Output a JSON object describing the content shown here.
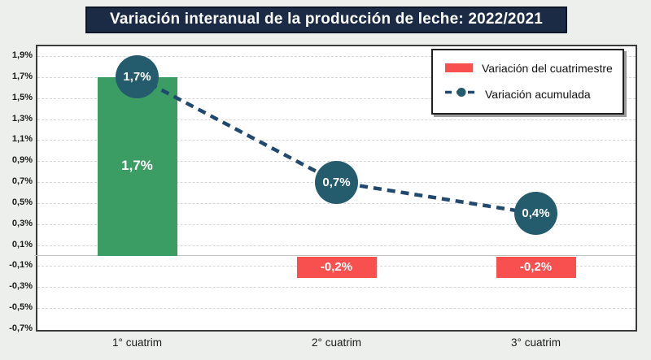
{
  "title": "Variación interanual de la producción de leche: 2022/2021",
  "legend": {
    "items": [
      {
        "label": "Variación del cuatrimestre",
        "marker": "bar-swatch"
      },
      {
        "label": "Variación acumulada",
        "marker": "dashed-line-dot"
      }
    ]
  },
  "chart_data": {
    "type": "bar",
    "title": "Variación interanual de la producción de leche: 2022/2021",
    "categories": [
      "1° cuatrim",
      "2° cuatrim",
      "3° cuatrim"
    ],
    "series": [
      {
        "name": "Variación del cuatrimestre",
        "type": "bar",
        "values": [
          1.7,
          -0.2,
          -0.2
        ],
        "labels": [
          "1,7%",
          "-0,2%",
          "-0,2%"
        ]
      },
      {
        "name": "Variación acumulada",
        "type": "line",
        "line_style": "dashed",
        "values": [
          1.7,
          0.7,
          0.4
        ],
        "labels": [
          "1,7%",
          "0,7%",
          "0,4%"
        ]
      }
    ],
    "ylim": [
      -0.7,
      1.9
    ],
    "ytick_step": 0.2,
    "yticks": [
      1.9,
      1.7,
      1.5,
      1.3,
      1.1,
      0.9,
      0.7,
      0.5,
      0.3,
      0.1,
      -0.1,
      -0.3,
      -0.5,
      -0.7
    ],
    "ytick_labels": [
      "1,9%",
      "1,7%",
      "1,5%",
      "1,3%",
      "1,1%",
      "0,9%",
      "0,7%",
      "0,5%",
      "0,3%",
      "0,1%",
      "-0,1%",
      "-0,3%",
      "-0,5%",
      "-0,7%"
    ],
    "grid": true,
    "legend_position": "top-right"
  },
  "colors": {
    "page_bg": "#edefed",
    "title_bg": "#1b2b45",
    "title_text": "#ffffff",
    "plot_bg": "#ffffff",
    "grid": "#d6d6d6",
    "zero_line": "#c3c3c3",
    "frame_border": "#3a3a3a",
    "axis_text": "#1a1a1a",
    "bar_positive": "#3b9c64",
    "bar_negative": "#f8504e",
    "line": "#21496f",
    "marker": "#245b6d"
  }
}
